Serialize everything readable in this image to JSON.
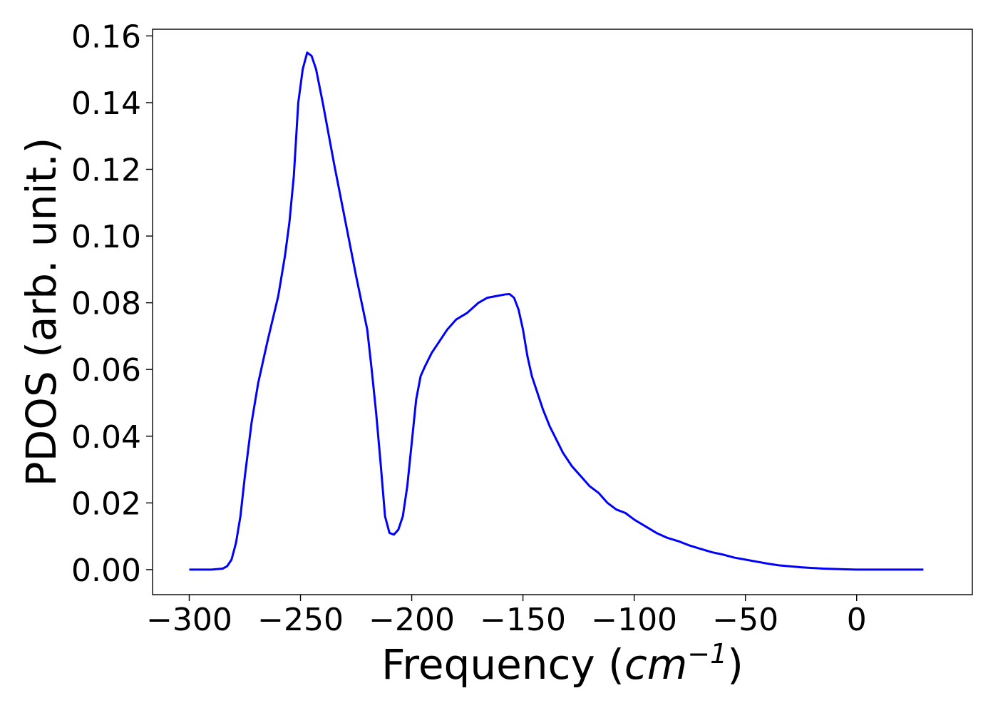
{
  "chart_data": {
    "type": "line",
    "title": "",
    "xlabel": "Frequency",
    "xlabel_unit": "cm",
    "xlabel_unit_exp": "−1",
    "ylabel": "PDOS (arb. unit.)",
    "xlim": [
      -316.5,
      52
    ],
    "ylim": [
      -0.0075,
      0.162
    ],
    "xticks": [
      -300,
      -250,
      -200,
      -150,
      -100,
      -50,
      0
    ],
    "xtick_labels": [
      "−300",
      "−250",
      "−200",
      "−150",
      "−100",
      "−50",
      "0"
    ],
    "yticks": [
      0.0,
      0.02,
      0.04,
      0.06,
      0.08,
      0.1,
      0.12,
      0.14,
      0.16
    ],
    "ytick_labels": [
      "0.00",
      "0.02",
      "0.04",
      "0.06",
      "0.08",
      "0.10",
      "0.12",
      "0.14",
      "0.16"
    ],
    "grid": false,
    "series": [
      {
        "color": "#0000ff",
        "x": [
          -300,
          -290,
          -285,
          -283,
          -281,
          -279,
          -277,
          -275,
          -272,
          -269,
          -265,
          -260,
          -257,
          -255,
          -253,
          -251,
          -249,
          -247,
          -245,
          -243,
          -240,
          -235,
          -230,
          -225,
          -220,
          -218,
          -216,
          -214,
          -212,
          -210,
          -208,
          -206,
          -204,
          -202,
          -200,
          -198,
          -196,
          -194,
          -191,
          -188,
          -184,
          -180,
          -175,
          -170,
          -166,
          -162,
          -158,
          -156,
          -154,
          -152,
          -150,
          -148,
          -146,
          -144,
          -141,
          -138,
          -135,
          -132,
          -128,
          -124,
          -120,
          -116,
          -112,
          -108,
          -104,
          -100,
          -95,
          -90,
          -85,
          -80,
          -75,
          -70,
          -65,
          -60,
          -55,
          -50,
          -45,
          -40,
          -35,
          -30,
          -25,
          -20,
          -15,
          -10,
          -5,
          0,
          10,
          20,
          30
        ],
        "y": [
          0.0,
          0.0,
          0.0003,
          0.001,
          0.003,
          0.008,
          0.016,
          0.028,
          0.044,
          0.056,
          0.068,
          0.082,
          0.094,
          0.104,
          0.118,
          0.14,
          0.15,
          0.155,
          0.154,
          0.15,
          0.14,
          0.122,
          0.105,
          0.088,
          0.072,
          0.06,
          0.047,
          0.032,
          0.016,
          0.011,
          0.0105,
          0.012,
          0.016,
          0.025,
          0.038,
          0.051,
          0.058,
          0.061,
          0.065,
          0.068,
          0.072,
          0.075,
          0.077,
          0.08,
          0.0815,
          0.082,
          0.0825,
          0.0826,
          0.0815,
          0.078,
          0.072,
          0.064,
          0.058,
          0.054,
          0.048,
          0.043,
          0.039,
          0.035,
          0.031,
          0.028,
          0.025,
          0.023,
          0.02,
          0.018,
          0.017,
          0.015,
          0.013,
          0.011,
          0.0095,
          0.0085,
          0.0072,
          0.0062,
          0.0052,
          0.0045,
          0.0036,
          0.003,
          0.0024,
          0.0018,
          0.0013,
          0.001,
          0.0007,
          0.0005,
          0.0003,
          0.0002,
          0.0001,
          0.0,
          0.0,
          0.0,
          0.0
        ]
      }
    ]
  }
}
